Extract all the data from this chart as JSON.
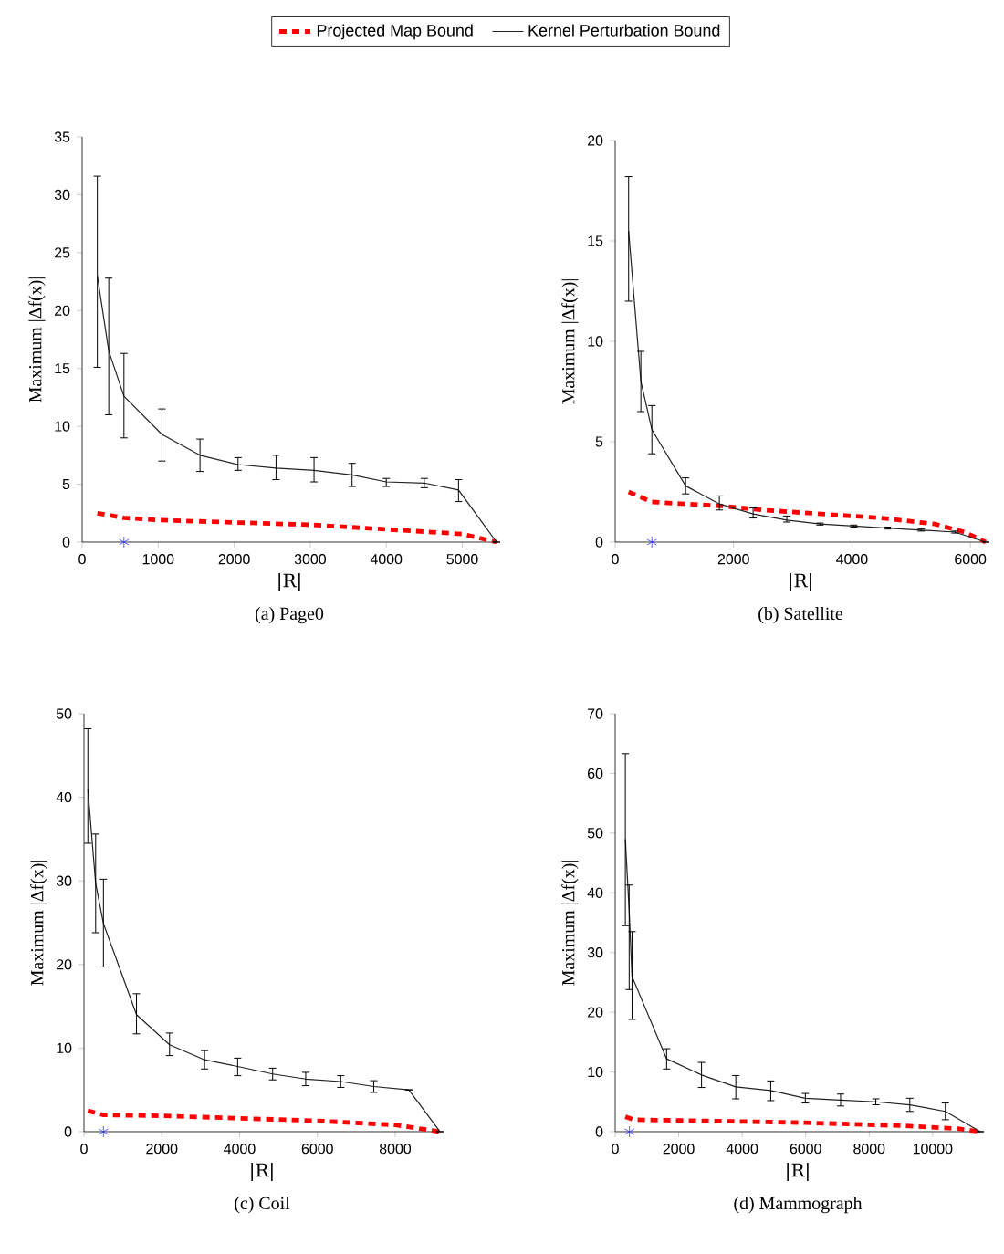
{
  "chart_data": [
    {
      "type": "line",
      "title": "(a) Page0",
      "xlabel": "|R|",
      "ylabel": "Maximum |Δf(x)|",
      "xlim": [
        0,
        5450
      ],
      "ylim": [
        0,
        35
      ],
      "xticks": [
        0,
        1000,
        2000,
        3000,
        4000,
        5000
      ],
      "yticks": [
        0,
        5,
        10,
        15,
        20,
        25,
        30,
        35
      ],
      "legend": "top",
      "series": [
        {
          "name": "Projected Map Bound",
          "color": "#ff0000",
          "line_style": "dashed",
          "x": [
            200,
            550,
            1000,
            2000,
            3000,
            4000,
            5000,
            5450
          ],
          "values": [
            2.5,
            2.1,
            1.9,
            1.7,
            1.5,
            1.1,
            0.7,
            0
          ]
        },
        {
          "name": "Kernel Perturbation Bound",
          "color": "#222222",
          "line_style": "solid",
          "x": [
            200,
            350,
            550,
            1050,
            1550,
            2050,
            2550,
            3050,
            3550,
            4000,
            4500,
            4950,
            5450
          ],
          "values": [
            23,
            16.5,
            12.6,
            9.3,
            7.5,
            6.7,
            6.4,
            6.2,
            5.8,
            5.2,
            5.1,
            4.5,
            0
          ],
          "errors": [
            [
              15.1,
              31.6
            ],
            [
              11,
              22.8
            ],
            [
              9,
              16.3
            ],
            [
              7,
              11.5
            ],
            [
              6.1,
              8.9
            ],
            [
              6.2,
              7.3
            ],
            [
              5.4,
              7.5
            ],
            [
              5.2,
              7.3
            ],
            [
              4.8,
              6.8
            ],
            [
              4.8,
              5.5
            ],
            [
              4.7,
              5.5
            ],
            [
              3.5,
              5.4
            ],
            null
          ]
        },
        {
          "type": "scatter",
          "color": "#3333ff",
          "marker": "cross",
          "x": [
            550
          ],
          "values": [
            0
          ]
        }
      ]
    },
    {
      "type": "line",
      "title": "(b) Satellite",
      "xlabel": "|R|",
      "ylabel": "Maximum |Δf(x)|",
      "xlim": [
        0,
        6260
      ],
      "ylim": [
        0,
        20
      ],
      "xticks": [
        0,
        2000,
        4000,
        6000
      ],
      "yticks": [
        0,
        5,
        10,
        15,
        20
      ],
      "series": [
        {
          "color": "#ff0000",
          "line_style": "dashed",
          "x": [
            227,
            620,
            1200,
            1800,
            2500,
            3500,
            4500,
            5400,
            5900,
            6260
          ],
          "values": [
            2.5,
            2.0,
            1.9,
            1.8,
            1.6,
            1.4,
            1.2,
            0.9,
            0.5,
            0
          ]
        },
        {
          "color": "#222222",
          "line_style": "solid",
          "x": [
            227,
            434,
            620,
            1190,
            1760,
            2330,
            2900,
            3460,
            4030,
            4600,
            5170,
            5740,
            6260
          ],
          "values": [
            15.5,
            8,
            5.6,
            2.8,
            1.9,
            1.4,
            1.1,
            0.9,
            0.8,
            0.7,
            0.6,
            0.5,
            0
          ],
          "errors": [
            [
              12,
              18.2
            ],
            [
              6.5,
              9.5
            ],
            [
              4.4,
              6.8
            ],
            [
              2.4,
              3.2
            ],
            [
              1.6,
              2.3
            ],
            [
              1.2,
              1.7
            ],
            [
              1.0,
              1.3
            ],
            [
              0.85,
              0.95
            ],
            [
              0.75,
              0.85
            ],
            [
              0.65,
              0.75
            ],
            [
              0.55,
              0.65
            ],
            [
              0.45,
              0.55
            ],
            null
          ]
        },
        {
          "type": "scatter",
          "color": "#3333ff",
          "marker": "cross",
          "x": [
            620
          ],
          "values": [
            0
          ]
        }
      ]
    },
    {
      "type": "line",
      "title": "(c) Coil",
      "xlabel": "|R|",
      "ylabel": "Maximum |Δf(x)|",
      "xlim": [
        0,
        9150
      ],
      "ylim": [
        0,
        50
      ],
      "xticks": [
        0,
        2000,
        4000,
        6000,
        8000
      ],
      "yticks": [
        0,
        10,
        20,
        30,
        40,
        50
      ],
      "series": [
        {
          "color": "#ff0000",
          "line_style": "dashed",
          "x": [
            100,
            500,
            2000,
            4000,
            6000,
            8000,
            9150
          ],
          "values": [
            2.5,
            2.0,
            1.9,
            1.6,
            1.3,
            0.8,
            0
          ]
        },
        {
          "color": "#222222",
          "line_style": "solid",
          "x": [
            100,
            300,
            500,
            1350,
            2200,
            3100,
            3950,
            4850,
            5700,
            6600,
            7450,
            8350,
            9150
          ],
          "values": [
            41,
            29.7,
            24.9,
            14,
            10.4,
            8.6,
            7.8,
            6.9,
            6.3,
            6,
            5.4,
            5,
            0
          ],
          "errors": [
            [
              34.5,
              48.2
            ],
            [
              23.8,
              35.6
            ],
            [
              19.7,
              30.2
            ],
            [
              11.7,
              16.5
            ],
            [
              9.1,
              11.8
            ],
            [
              7.5,
              9.7
            ],
            [
              6.7,
              8.8
            ],
            [
              6.2,
              7.6
            ],
            [
              5.5,
              7.1
            ],
            [
              5.3,
              6.7
            ],
            [
              4.7,
              6.1
            ],
            null,
            null
          ]
        },
        {
          "type": "scatter",
          "color": "#3333ff",
          "marker": "cross",
          "x": [
            500
          ],
          "values": [
            0
          ]
        }
      ]
    },
    {
      "type": "line",
      "title": "(d) Mammograph",
      "xlabel": "|R|",
      "ylabel": "Maximum |Δf(x)|",
      "xlim": [
        0,
        11500
      ],
      "ylim": [
        0,
        70
      ],
      "xticks": [
        0,
        2000,
        4000,
        6000,
        8000,
        10000
      ],
      "yticks": [
        0,
        10,
        20,
        30,
        40,
        50,
        60,
        70
      ],
      "series": [
        {
          "color": "#ff0000",
          "line_style": "dashed",
          "x": [
            320,
            600,
            3000,
            6000,
            9000,
            10800,
            11500
          ],
          "values": [
            2.5,
            2.0,
            1.8,
            1.5,
            1.0,
            0.5,
            0
          ]
        },
        {
          "color": "#222222",
          "line_style": "solid",
          "x": [
            320,
            440,
            530,
            1620,
            2720,
            3800,
            4900,
            5990,
            7100,
            8210,
            9280,
            10400,
            11500
          ],
          "values": [
            49,
            37,
            26,
            12.2,
            9.5,
            7.5,
            6.9,
            5.6,
            5.3,
            5,
            4.5,
            3.4,
            0
          ],
          "errors": [
            [
              34.5,
              63.3
            ],
            [
              23.8,
              41.3
            ],
            [
              18.8,
              33.5
            ],
            [
              10.5,
              13.9
            ],
            [
              7.4,
              11.6
            ],
            [
              5.5,
              9.4
            ],
            [
              5.2,
              8.5
            ],
            [
              4.8,
              6.4
            ],
            [
              4.3,
              6.3
            ],
            [
              4.5,
              5.5
            ],
            [
              3.4,
              5.6
            ],
            [
              2,
              4.8
            ],
            null
          ]
        },
        {
          "type": "scatter",
          "color": "#3333ff",
          "marker": "cross",
          "x": [
            450
          ],
          "values": [
            0
          ]
        }
      ]
    }
  ]
}
